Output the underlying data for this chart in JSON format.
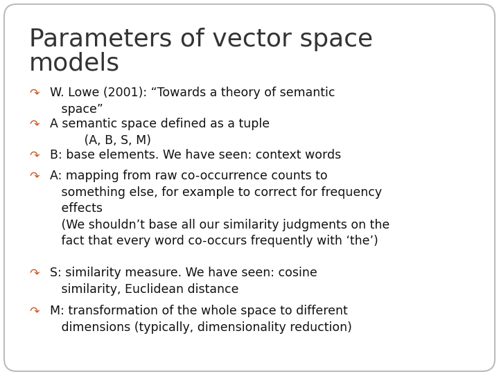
{
  "title_line1": "Parameters of vector space",
  "title_line2": "models",
  "title_color": "#333333",
  "title_fontsize": 26,
  "background_color": "#ffffff",
  "border_color": "#bbbbbb",
  "bullet_color": "#cc5522",
  "text_color": "#111111",
  "body_fontsize": 12.5,
  "figsize": [
    7.2,
    5.4
  ],
  "dpi": 100,
  "bullets": [
    "W. Lowe (2001): “Towards a theory of semantic\n   space”",
    "A semantic space defined as a tuple\n         (A, B, S, M)",
    "B: base elements. We have seen: context words",
    "A: mapping from raw co-occurrence counts to\n   something else, for example to correct for frequency\n   effects\n   (We shouldn’t base all our similarity judgments on the\n   fact that every word co-occurs frequently with ‘the’)",
    "S: similarity measure. We have seen: cosine\n   similarity, Euclidean distance",
    "M: transformation of the whole space to different\n   dimensions (typically, dimensionality reduction)"
  ]
}
